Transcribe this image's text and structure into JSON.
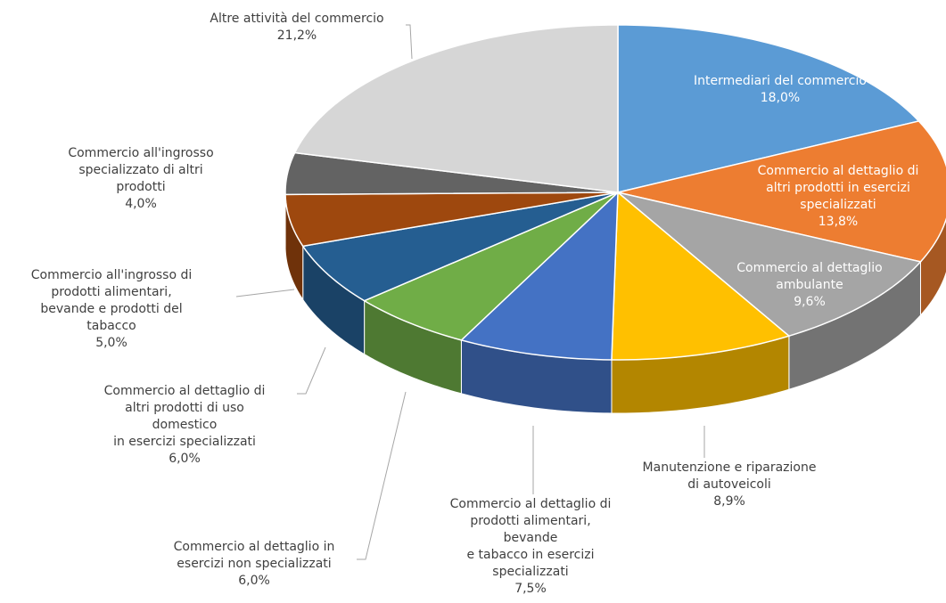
{
  "chart_data": {
    "type": "pie3d",
    "categories": [
      "Intermediari del commercio",
      "Commercio al dettaglio di\naltri prodotti in esercizi\nspecializzati",
      "Commercio al dettaglio\nambulante",
      "Manutenzione e riparazione\ndi autoveicoli",
      "Commercio al dettaglio di\nprodotti alimentari,\nbevande\ne tabacco in esercizi\nspecializzati",
      "Commercio al dettaglio in\nesercizi non specializzati",
      "Commercio al dettaglio di\naltri prodotti di uso\ndomestico\nin esercizi specializzati",
      "Commercio all'ingrosso di\nprodotti alimentari,\nbevande e prodotti del\ntabacco",
      "Commercio all'ingrosso\nspecializzato di altri\nprodotti",
      "Altre attività del commercio"
    ],
    "values": [
      18.0,
      13.8,
      9.6,
      8.9,
      7.5,
      6.0,
      6.0,
      5.0,
      4.0,
      21.2
    ],
    "value_labels": [
      "18,0%",
      "13,8%",
      "9,6%",
      "8,9%",
      "7,5%",
      "6,0%",
      "6,0%",
      "5,0%",
      "4,0%",
      "21,2%"
    ],
    "colors": [
      "#5b9bd5",
      "#ed7d31",
      "#a5a5a5",
      "#ffc000",
      "#4472c4",
      "#70ad47",
      "#255e91",
      "#9e480e",
      "#636363",
      "#d6d6d6"
    ]
  }
}
